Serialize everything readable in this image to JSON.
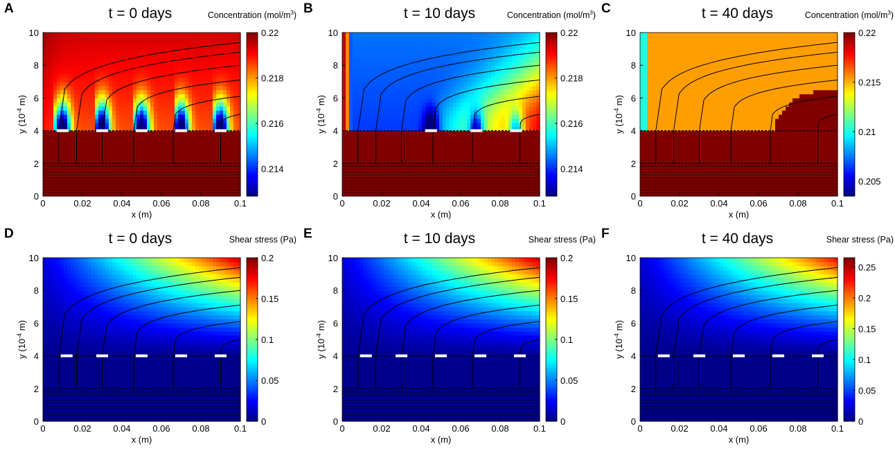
{
  "chart_data": [
    {
      "id": "A",
      "letter": "A",
      "type": "heatmap",
      "quantity": "conc",
      "title": "t = 0 days",
      "colorbar_label": "Concentration (mol/m",
      "colorbar_label_sup": "3",
      "colorbar_label_tail": ")",
      "xlabel": "x (m)",
      "ylabel": "y (10",
      "ylabel_sup": "-4",
      "ylabel_tail": " m)",
      "xlim": [
        0,
        0.1
      ],
      "ylim": [
        0,
        10
      ],
      "xticks": [
        "0",
        "0.02",
        "0.04",
        "0.06",
        "0.08",
        "0.1"
      ],
      "yticks": [
        "0",
        "2",
        "4",
        "6",
        "8",
        "10"
      ],
      "colorbar_range": [
        0.2128,
        0.22
      ],
      "colorbar_ticks": [
        "0.214",
        "0.216",
        "0.218",
        "0.22"
      ],
      "colorbar_tick_values": [
        0.214,
        0.216,
        0.218,
        0.22
      ],
      "zones": [
        0.01,
        0.03,
        0.05,
        0.07,
        0.09
      ],
      "state": 0
    },
    {
      "id": "B",
      "letter": "B",
      "type": "heatmap",
      "quantity": "conc",
      "title": "t = 10 days",
      "colorbar_label": "Concentration (mol/m",
      "colorbar_label_sup": "3",
      "colorbar_label_tail": ")",
      "xlabel": "x (m)",
      "ylabel": "y (10",
      "ylabel_sup": "-4",
      "ylabel_tail": " m)",
      "xlim": [
        0,
        0.1
      ],
      "ylim": [
        0,
        10
      ],
      "xticks": [
        "0",
        "0.02",
        "0.04",
        "0.06",
        "0.08",
        "0.1"
      ],
      "yticks": [
        "0",
        "2",
        "4",
        "6",
        "8",
        "10"
      ],
      "colorbar_range": [
        0.2128,
        0.22
      ],
      "colorbar_ticks": [
        "0.214",
        "0.216",
        "0.218",
        "0.22"
      ],
      "colorbar_tick_values": [
        0.214,
        0.216,
        0.218,
        0.22
      ],
      "zones": [
        0.045,
        0.068,
        0.088
      ],
      "state": 1
    },
    {
      "id": "C",
      "letter": "C",
      "type": "heatmap",
      "quantity": "conc",
      "title": "t = 40 days",
      "colorbar_label": "Concentration (mol/m",
      "colorbar_label_sup": "3",
      "colorbar_label_tail": ")",
      "xlabel": "x (m)",
      "ylabel": "y (10",
      "ylabel_sup": "-4",
      "ylabel_tail": " m)",
      "xlim": [
        0,
        0.1
      ],
      "ylim": [
        0,
        10
      ],
      "xticks": [
        "0",
        "0.02",
        "0.04",
        "0.06",
        "0.08",
        "0.1"
      ],
      "yticks": [
        "0",
        "2",
        "4",
        "6",
        "8",
        "10"
      ],
      "colorbar_range": [
        0.2035,
        0.22
      ],
      "colorbar_ticks": [
        "0.205",
        "0.21",
        "0.215",
        "0.22"
      ],
      "colorbar_tick_values": [
        0.205,
        0.21,
        0.215,
        0.22
      ],
      "zones": [],
      "state": 2
    },
    {
      "id": "D",
      "letter": "D",
      "type": "heatmap",
      "quantity": "shear",
      "title": "t = 0 days",
      "colorbar_label": "Shear stress (Pa)",
      "colorbar_label_sup": "",
      "colorbar_label_tail": "",
      "xlabel": "x (m)",
      "ylabel": "y (10",
      "ylabel_sup": "-4",
      "ylabel_tail": " m)",
      "xlim": [
        0,
        0.1
      ],
      "ylim": [
        0,
        10
      ],
      "xticks": [
        "0",
        "0.02",
        "0.04",
        "0.06",
        "0.08",
        "0.1"
      ],
      "yticks": [
        "0",
        "2",
        "4",
        "6",
        "8",
        "10"
      ],
      "colorbar_range": [
        0,
        0.2
      ],
      "colorbar_ticks": [
        "0",
        "0.05",
        "0.1",
        "0.15",
        "0.2"
      ],
      "colorbar_tick_values": [
        0,
        0.05,
        0.1,
        0.15,
        0.2
      ],
      "shear_max": 0.2,
      "state": 0
    },
    {
      "id": "E",
      "letter": "E",
      "type": "heatmap",
      "quantity": "shear",
      "title": "t = 10 days",
      "colorbar_label": "Shear stress (Pa)",
      "colorbar_label_sup": "",
      "colorbar_label_tail": "",
      "xlabel": "x (m)",
      "ylabel": "y (10",
      "ylabel_sup": "-4",
      "ylabel_tail": " m)",
      "xlim": [
        0,
        0.1
      ],
      "ylim": [
        0,
        10
      ],
      "xticks": [
        "0",
        "0.02",
        "0.04",
        "0.06",
        "0.08",
        "0.1"
      ],
      "yticks": [
        "0",
        "2",
        "4",
        "6",
        "8",
        "10"
      ],
      "colorbar_range": [
        0,
        0.2
      ],
      "colorbar_ticks": [
        "0",
        "0.05",
        "0.1",
        "0.15",
        "0.2"
      ],
      "colorbar_tick_values": [
        0,
        0.05,
        0.1,
        0.15,
        0.2
      ],
      "shear_max": 0.2,
      "state": 1
    },
    {
      "id": "F",
      "letter": "F",
      "type": "heatmap",
      "quantity": "shear",
      "title": "t = 40 days",
      "colorbar_label": "Shear stress (Pa)",
      "colorbar_label_sup": "",
      "colorbar_label_tail": "",
      "xlabel": "x (m)",
      "ylabel": "y (10",
      "ylabel_sup": "-4",
      "ylabel_tail": " m)",
      "xlim": [
        0,
        0.1
      ],
      "ylim": [
        0,
        10
      ],
      "xticks": [
        "0",
        "0.02",
        "0.04",
        "0.06",
        "0.08",
        "0.1"
      ],
      "yticks": [
        "0",
        "2",
        "4",
        "6",
        "8",
        "10"
      ],
      "colorbar_range": [
        0,
        0.265
      ],
      "colorbar_ticks": [
        "0",
        "0.05",
        "0.1",
        "0.15",
        "0.2",
        "0.25"
      ],
      "colorbar_tick_values": [
        0,
        0.05,
        0.1,
        0.15,
        0.2,
        0.25
      ],
      "shear_max": 0.25,
      "state": 2
    }
  ]
}
